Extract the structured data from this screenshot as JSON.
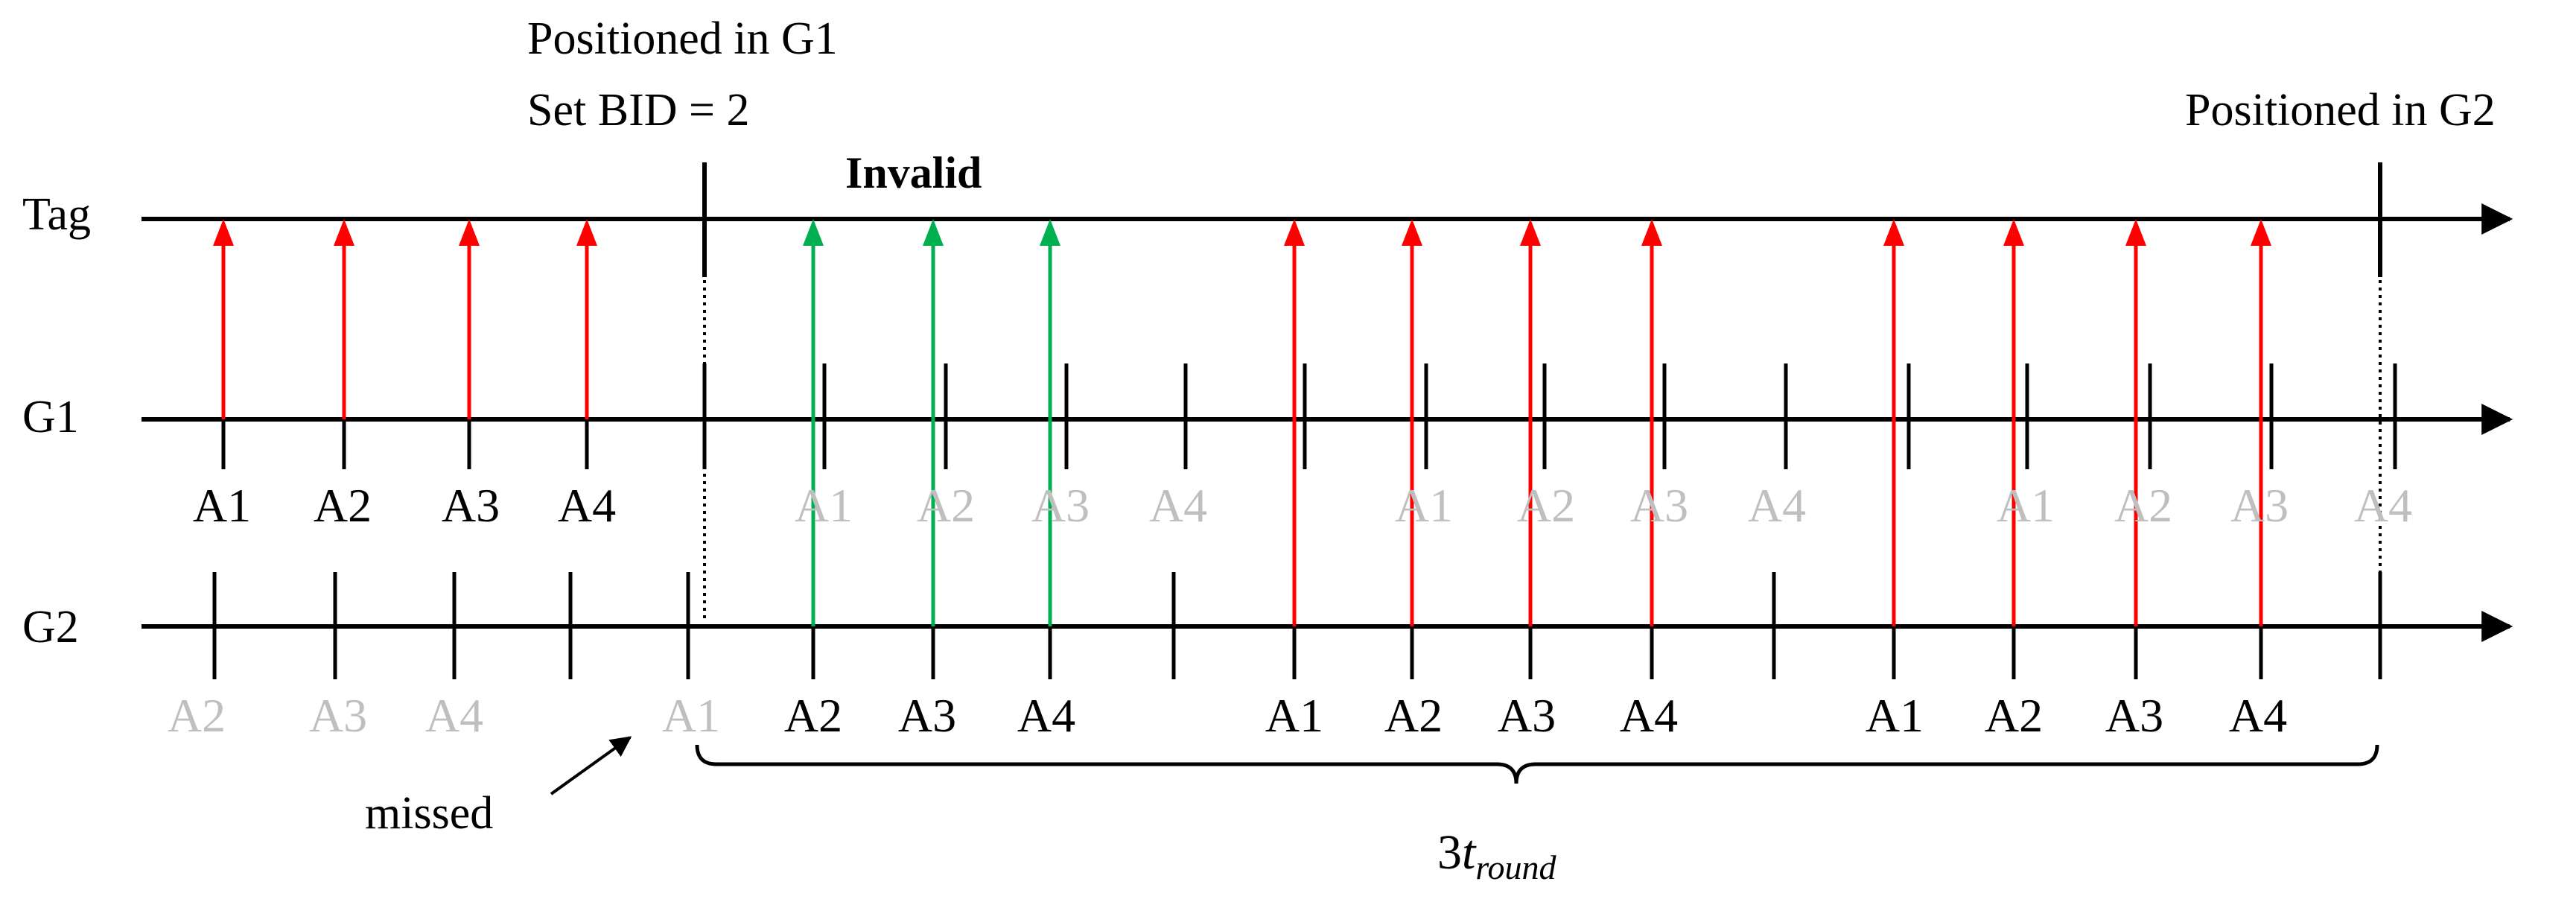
{
  "annotations": {
    "g1_position_line1": "Positioned in G1",
    "g1_position_line2": "Set BID = 2",
    "g2_position": "Positioned in G2",
    "invalid": "Invalid",
    "missed": "missed",
    "duration_prefix": "3",
    "duration_var": "t",
    "duration_sub": "round"
  },
  "colors": {
    "axis": "#000000",
    "valid_arrow": "#ff0000",
    "invalid_arrow": "#00b050",
    "invalid_label": "#00b050",
    "inactive_label": "#bfbfbf"
  },
  "rows": [
    {
      "key": "tag",
      "label": "Tag"
    },
    {
      "key": "g1",
      "label": "G1"
    },
    {
      "key": "g2",
      "label": "G2"
    }
  ],
  "g1_slots": [
    {
      "label": "A1",
      "active": true
    },
    {
      "label": "A2",
      "active": true
    },
    {
      "label": "A3",
      "active": true
    },
    {
      "label": "A4",
      "active": true
    },
    {
      "label": "A1",
      "active": false
    },
    {
      "label": "A2",
      "active": false
    },
    {
      "label": "A3",
      "active": false
    },
    {
      "label": "A4",
      "active": false
    },
    {
      "label": "A1",
      "active": false
    },
    {
      "label": "A2",
      "active": false
    },
    {
      "label": "A3",
      "active": false
    },
    {
      "label": "A4",
      "active": false
    },
    {
      "label": "A1",
      "active": false
    },
    {
      "label": "A2",
      "active": false
    },
    {
      "label": "A3",
      "active": false
    },
    {
      "label": "A4",
      "active": false
    }
  ],
  "g2_slots": [
    {
      "label": "A2",
      "active": false
    },
    {
      "label": "A3",
      "active": false
    },
    {
      "label": "A4",
      "active": false
    },
    {
      "label": "A1",
      "active": false
    },
    {
      "label": "A2",
      "active": true
    },
    {
      "label": "A3",
      "active": true
    },
    {
      "label": "A4",
      "active": true
    },
    {
      "label": "A1",
      "active": true
    },
    {
      "label": "A2",
      "active": true
    },
    {
      "label": "A3",
      "active": true
    },
    {
      "label": "A4",
      "active": true
    },
    {
      "label": "A1",
      "active": true
    },
    {
      "label": "A2",
      "active": true
    },
    {
      "label": "A3",
      "active": true
    },
    {
      "label": "A4",
      "active": true
    }
  ],
  "arrows": [
    {
      "status": "valid"
    },
    {
      "status": "valid"
    },
    {
      "status": "valid"
    },
    {
      "status": "valid"
    },
    {
      "status": "invalid"
    },
    {
      "status": "invalid"
    },
    {
      "status": "invalid"
    },
    {
      "status": "valid"
    },
    {
      "status": "valid"
    },
    {
      "status": "valid"
    },
    {
      "status": "valid"
    },
    {
      "status": "valid"
    },
    {
      "status": "valid"
    },
    {
      "status": "valid"
    },
    {
      "status": "valid"
    }
  ]
}
